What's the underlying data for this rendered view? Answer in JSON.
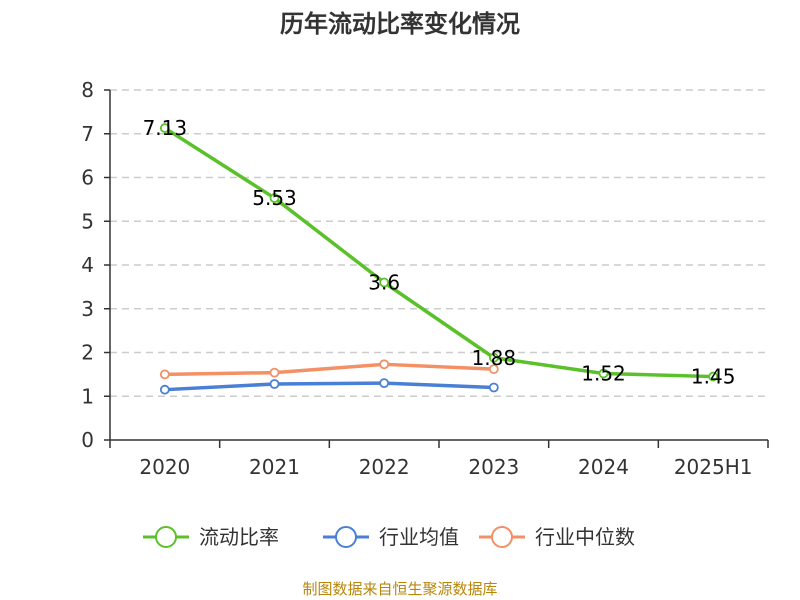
{
  "chart_data": {
    "type": "line",
    "title": "历年流动比率变化情况",
    "categories": [
      "2020",
      "2021",
      "2022",
      "2023",
      "2024",
      "2025H1"
    ],
    "ylim": [
      0,
      8
    ],
    "yticks": [
      "0",
      "1",
      "2",
      "3",
      "4",
      "5",
      "6",
      "7",
      "8"
    ],
    "grid": true,
    "legend_position": "bottom",
    "series": [
      {
        "name": "流动比率",
        "color": "#5ac12a",
        "values": [
          7.13,
          5.53,
          3.6,
          1.88,
          1.52,
          1.45
        ],
        "labels": [
          "7.13",
          "5.53",
          "3.6",
          "1.88",
          "1.52",
          "1.45"
        ]
      },
      {
        "name": "行业均值",
        "color": "#4a7fd6",
        "values": [
          1.15,
          1.28,
          1.3,
          1.2,
          null,
          null
        ]
      },
      {
        "name": "行业中位数",
        "color": "#f39064",
        "values": [
          1.5,
          1.54,
          1.73,
          1.62,
          null,
          null
        ]
      }
    ]
  },
  "source": "制图数据来自恒生聚源数据库"
}
